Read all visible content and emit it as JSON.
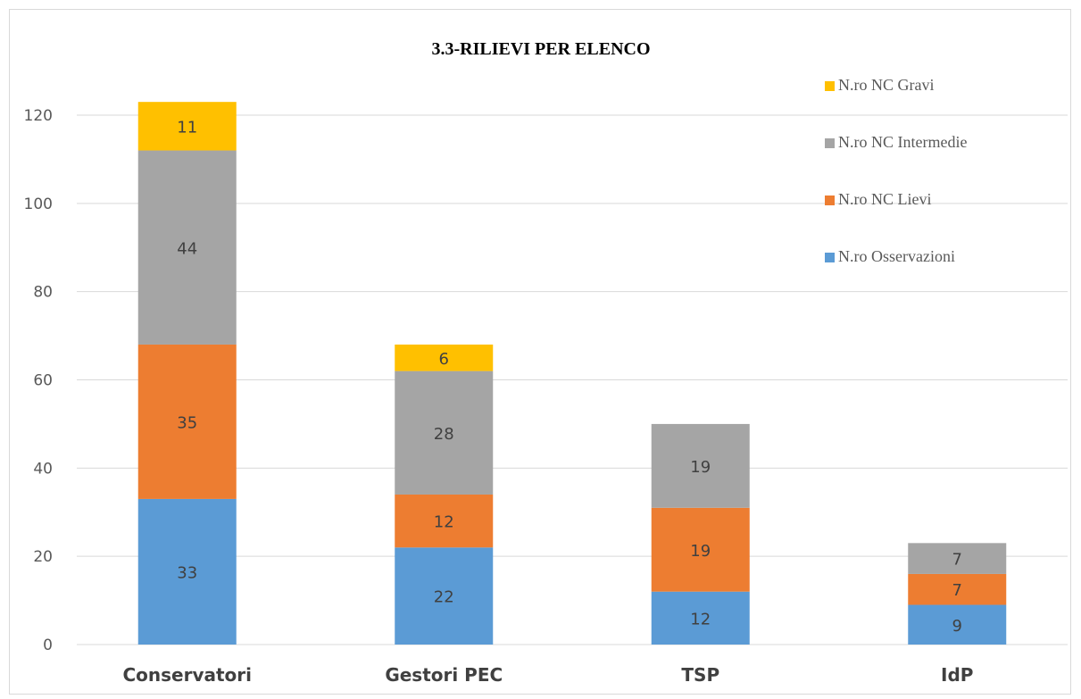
{
  "chart_data": {
    "type": "bar",
    "stacked": true,
    "title": "3.3-RILIEVI PER ELENCO",
    "categories": [
      "Conservatori",
      "Gestori PEC",
      "TSP",
      "IdP"
    ],
    "series": [
      {
        "name": "N.ro Osservazioni",
        "values": [
          33,
          22,
          12,
          9
        ],
        "color": "#5b9bd5"
      },
      {
        "name": "N.ro NC Lievi",
        "values": [
          35,
          12,
          19,
          7
        ],
        "color": "#ed7d31"
      },
      {
        "name": "N.ro NC Intermedie",
        "values": [
          44,
          28,
          19,
          7
        ],
        "color": "#a5a5a5"
      },
      {
        "name": "N.ro NC Gravi",
        "values": [
          11,
          6,
          0,
          0
        ],
        "color": "#ffc000"
      }
    ],
    "ylim": [
      0,
      120
    ],
    "yticks": [
      "0",
      "20",
      "40",
      "60",
      "80",
      "100",
      "120"
    ],
    "grid": true,
    "legend": "top-right"
  }
}
